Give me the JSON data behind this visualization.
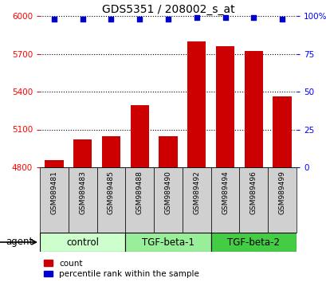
{
  "title": "GDS5351 / 208002_s_at",
  "samples": [
    "GSM989481",
    "GSM989483",
    "GSM989485",
    "GSM989488",
    "GSM989490",
    "GSM989492",
    "GSM989494",
    "GSM989496",
    "GSM989499"
  ],
  "bar_values": [
    4860,
    5020,
    5045,
    5290,
    5045,
    5800,
    5760,
    5720,
    5360
  ],
  "percentile_values": [
    98,
    98,
    98,
    98,
    98,
    99,
    99,
    99,
    98
  ],
  "ylim_left": [
    4800,
    6000
  ],
  "ylim_right": [
    0,
    100
  ],
  "yticks_left": [
    4800,
    5100,
    5400,
    5700,
    6000
  ],
  "yticks_right": [
    0,
    25,
    50,
    75,
    100
  ],
  "bar_color": "#cc0000",
  "dot_color": "#0000cc",
  "groups": [
    {
      "label": "control",
      "indices": [
        0,
        1,
        2
      ],
      "color": "#ccffcc"
    },
    {
      "label": "TGF-beta-1",
      "indices": [
        3,
        4,
        5
      ],
      "color": "#99ee99"
    },
    {
      "label": "TGF-beta-2",
      "indices": [
        6,
        7,
        8
      ],
      "color": "#44cc44"
    }
  ],
  "agent_label": "agent",
  "legend_count_label": "count",
  "legend_percentile_label": "percentile rank within the sample",
  "bar_bottom": 4800,
  "background_color": "#ffffff",
  "sample_box_color": "#d0d0d0",
  "sample_fontsize": 6.5,
  "group_fontsize": 8.5,
  "title_fontsize": 10
}
